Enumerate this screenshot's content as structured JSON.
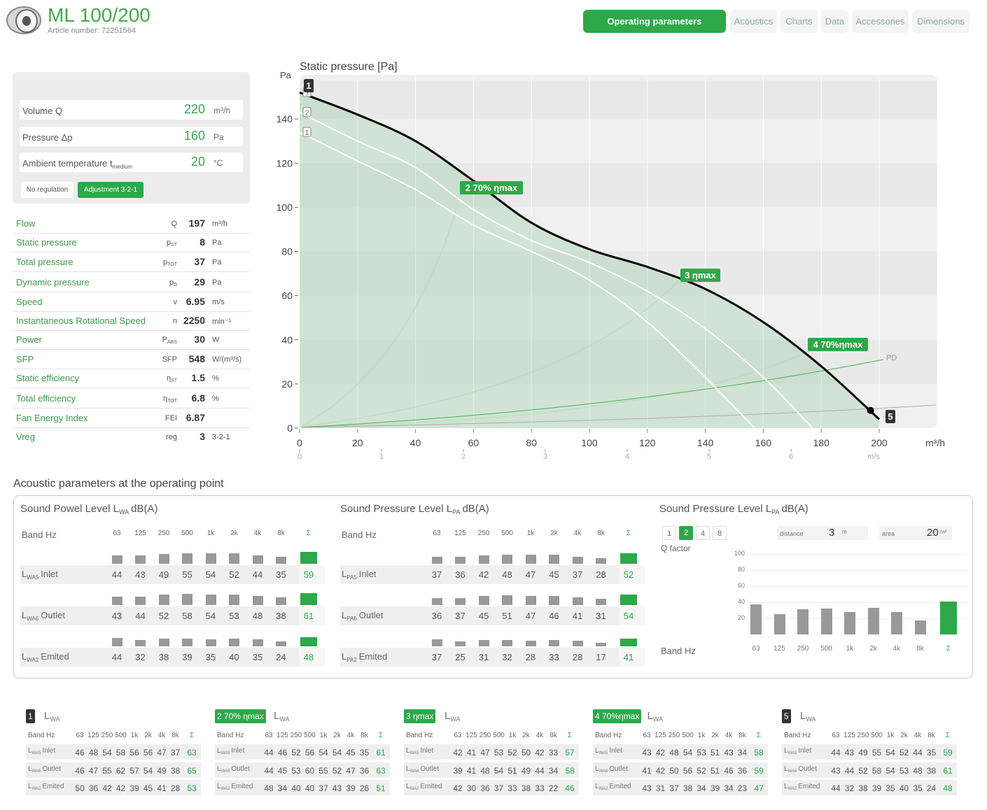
{
  "header": {
    "title": "ML 100/200",
    "article": "Article number: 72251564"
  },
  "tabs": [
    "Operating parameters",
    "Acoustics",
    "Charts",
    "Data",
    "Accessories",
    "Dimensions"
  ],
  "active_tab": 0,
  "inputs": [
    {
      "label": "Volume Q",
      "value": 220,
      "unit": "m³/h"
    },
    {
      "label": "Pressure Δp",
      "value": 160,
      "unit": "Pa"
    },
    {
      "label": "Ambient temperature t",
      "sub": "medium",
      "value": 20,
      "unit": "°C"
    }
  ],
  "regulation": [
    "No regulation",
    "Adjustment 3-2-1"
  ],
  "regulation_selected": 1,
  "params": [
    {
      "label": "Flow",
      "symbol": "Q",
      "value": 197,
      "unit": "m³/h"
    },
    {
      "label": "Static pressure",
      "symbol": "p",
      "sub": "ST",
      "value": 8,
      "unit": "Pa"
    },
    {
      "label": "Total pressure",
      "symbol": "p",
      "sub": "TOT",
      "value": 37,
      "unit": "Pa"
    },
    {
      "label": "Dynamic pressure",
      "symbol": "p",
      "sub": "D",
      "value": 29,
      "unit": "Pa"
    },
    {
      "label": "Speed",
      "symbol": "v",
      "value": 6.95,
      "unit": "m/s"
    },
    {
      "label": "Instantaneous Rotational Speed",
      "symbol": "n",
      "value": 2250,
      "unit": "min⁻¹"
    },
    {
      "label": "Power",
      "symbol": "P",
      "sub": "ABS",
      "value": 30,
      "unit": "W"
    },
    {
      "label": "SFP",
      "symbol": "SFP",
      "value": 548,
      "unit": "W/(m³/s)"
    },
    {
      "label": "Static efficiency",
      "symbol": "η",
      "sub": "ST",
      "value": 1.5,
      "unit": "%"
    },
    {
      "label": "Total efficiency",
      "symbol": "η",
      "sub": "TOT",
      "value": 6.8,
      "unit": "%"
    },
    {
      "label": "Fan Energy Index",
      "symbol": "FEI",
      "value": 6.87
    },
    {
      "label": "Vreg",
      "symbol": "reg",
      "value": 3,
      "unit": "3-2-1"
    }
  ],
  "chart_data": {
    "type": "line",
    "title": "Static pressure [Pa]",
    "y_label": "Pa",
    "x_label": "m³/h",
    "speed_label": "m/s",
    "speed_ticks": [
      0,
      1,
      2,
      3,
      4,
      5,
      6
    ],
    "xlim": [
      0,
      220
    ],
    "xticks": [
      0,
      20,
      40,
      60,
      80,
      100,
      120,
      140,
      160,
      180,
      200
    ],
    "ylim": [
      0,
      160
    ],
    "yticks": [
      0,
      20,
      40,
      60,
      80,
      100,
      120,
      140
    ],
    "grid": true,
    "series": [
      {
        "name": "3",
        "color": "#000000",
        "x": [
          0,
          20,
          40,
          60,
          80,
          100,
          120,
          140,
          160,
          180,
          200
        ],
        "values": [
          152,
          142,
          130,
          112,
          93,
          81,
          73,
          63,
          48,
          28,
          4
        ]
      },
      {
        "name": "2",
        "color": "#ffffff",
        "x": [
          0,
          20,
          40,
          60,
          80,
          100,
          120,
          140,
          160,
          177
        ],
        "values": [
          143,
          130,
          118,
          99,
          85,
          75,
          62,
          45,
          23,
          0
        ]
      },
      {
        "name": "1",
        "color": "#ffffff",
        "x": [
          0,
          20,
          40,
          60,
          80,
          100,
          120,
          140,
          157
        ],
        "values": [
          134,
          121,
          108,
          92,
          80,
          67,
          48,
          23,
          0
        ]
      }
    ],
    "operating_point": {
      "x": 197,
      "y": 8
    },
    "annotations": [
      "1",
      "2 70% ηmax",
      "3 ηmax",
      "4 70%ηmax",
      "5",
      "PD"
    ]
  },
  "acoustics": {
    "title": "Acoustic parameters at the operating point",
    "band_label": "Band Hz",
    "bands": [
      "63",
      "125",
      "250",
      "500",
      "1k",
      "2k",
      "4k",
      "8k",
      "Σ"
    ],
    "panels": [
      {
        "title": "Sound Powel Level L",
        "title_sub": "WA",
        "title_unit": "dB(A)",
        "rows": [
          {
            "symbol": "L",
            "sub": "WA5",
            "name": "Inlet",
            "values": [
              44,
              43,
              49,
              55,
              54,
              52,
              44,
              35,
              59
            ]
          },
          {
            "symbol": "L",
            "sub": "WA6",
            "name": "Outlet",
            "values": [
              43,
              44,
              52,
              58,
              54,
              53,
              48,
              38,
              61
            ]
          },
          {
            "symbol": "L",
            "sub": "WA2",
            "name": "Emited",
            "values": [
              44,
              32,
              38,
              39,
              35,
              40,
              35,
              24,
              48
            ]
          }
        ]
      },
      {
        "title": "Sound Pressure Level L",
        "title_sub": "PA",
        "title_unit": "dB(A)",
        "rows": [
          {
            "symbol": "L",
            "sub": "PA5",
            "name": "Inlet",
            "values": [
              37,
              36,
              42,
              48,
              47,
              45,
              37,
              28,
              52
            ]
          },
          {
            "symbol": "L",
            "sub": "PA6",
            "name": "Outlet",
            "values": [
              36,
              37,
              45,
              51,
              47,
              46,
              41,
              31,
              54
            ]
          },
          {
            "symbol": "L",
            "sub": "PA2",
            "name": "Emited",
            "values": [
              37,
              25,
              31,
              32,
              28,
              33,
              28,
              17,
              41
            ]
          }
        ]
      }
    ],
    "room": {
      "title": "Sound Pressure Level L",
      "title_sub": "PA",
      "title_unit": "dB(A)",
      "q_options": [
        "1",
        "2",
        "4",
        "8"
      ],
      "q_selected": 1,
      "q_label": "Q factor",
      "distance_label": "distance",
      "distance": 3,
      "distance_unit": "m",
      "area_label": "area",
      "area": 20,
      "area_unit": "m²",
      "ylim": [
        0,
        100
      ],
      "yticks": [
        20,
        40,
        60,
        80,
        100
      ],
      "values": [
        37,
        25,
        31,
        32,
        28,
        33,
        28,
        17,
        41
      ]
    }
  },
  "points": [
    {
      "badge": "1",
      "dark": true,
      "title": "L",
      "title_sub": "WA",
      "rows": [
        [
          46,
          48,
          54,
          58,
          56,
          56,
          47,
          37,
          63
        ],
        [
          46,
          47,
          55,
          62,
          57,
          54,
          49,
          38,
          65
        ],
        [
          50,
          36,
          42,
          42,
          39,
          45,
          41,
          28,
          53
        ]
      ]
    },
    {
      "badge": "2 70% ηmax",
      "dark": false,
      "title": "L",
      "title_sub": "WA",
      "rows": [
        [
          44,
          46,
          52,
          56,
          54,
          54,
          45,
          35,
          61
        ],
        [
          44,
          45,
          53,
          60,
          55,
          52,
          47,
          36,
          63
        ],
        [
          48,
          34,
          40,
          40,
          37,
          43,
          39,
          26,
          51
        ]
      ]
    },
    {
      "badge": "3 ηmax",
      "dark": false,
      "title": "L",
      "title_sub": "WA",
      "rows": [
        [
          42,
          41,
          47,
          53,
          52,
          50,
          42,
          33,
          57
        ],
        [
          39,
          41,
          48,
          54,
          51,
          49,
          44,
          34,
          58
        ],
        [
          42,
          30,
          36,
          37,
          33,
          38,
          33,
          22,
          46
        ]
      ]
    },
    {
      "badge": "4 70%ηmax",
      "dark": false,
      "title": "L",
      "title_sub": "WA",
      "rows": [
        [
          43,
          42,
          48,
          54,
          53,
          51,
          43,
          34,
          58
        ],
        [
          41,
          42,
          50,
          56,
          52,
          51,
          46,
          36,
          59
        ],
        [
          43,
          31,
          37,
          38,
          34,
          39,
          34,
          23,
          47
        ]
      ]
    },
    {
      "badge": "5",
      "dark": true,
      "title": "L",
      "title_sub": "WA",
      "rows": [
        [
          44,
          43,
          49,
          55,
          54,
          52,
          44,
          35,
          59
        ],
        [
          43,
          44,
          52,
          58,
          54,
          53,
          48,
          38,
          61
        ],
        [
          44,
          32,
          38,
          39,
          35,
          40,
          35,
          24,
          48
        ]
      ]
    }
  ]
}
